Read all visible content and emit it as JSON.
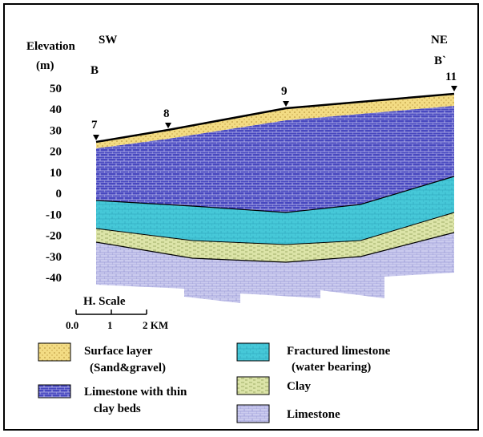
{
  "axis": {
    "title": "Elevation",
    "unit": "(m)",
    "ticks": [
      "50",
      "40",
      "30",
      "20",
      "10",
      "0",
      "-10",
      "-20",
      "-30",
      "-40"
    ]
  },
  "section": {
    "left_direction": "SW",
    "left_point": "B",
    "right_direction": "NE",
    "right_point": "B`"
  },
  "wells": [
    "7",
    "8",
    "9",
    "11"
  ],
  "scale": {
    "title": "H. Scale",
    "labels": [
      "0.0",
      "1",
      "2 KM"
    ]
  },
  "legend": [
    {
      "lines": [
        "Surface layer",
        "(Sand&gravel)"
      ]
    },
    {
      "lines": [
        "Fractured limestone",
        "(water bearing)"
      ]
    },
    {
      "lines": [
        "Limestone with thin",
        "clay beds"
      ]
    },
    {
      "lines": [
        "Clay"
      ]
    },
    {
      "lines": [
        "Limestone"
      ]
    }
  ]
}
